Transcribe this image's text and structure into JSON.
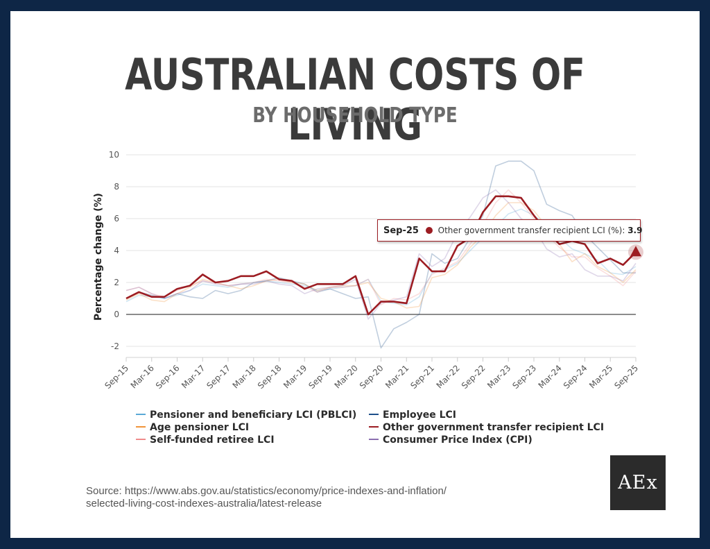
{
  "header": {
    "title": "AUSTRALIAN COSTS OF LIVING",
    "subtitle": "BY HOUSEHOLD TYPE"
  },
  "chart_data": {
    "type": "line",
    "title": "AUSTRALIAN COSTS OF LIVING",
    "subtitle": "BY HOUSEHOLD TYPE",
    "xlabel": "",
    "ylabel": "Percentage change (%)",
    "ylim": [
      -2,
      10
    ],
    "yticks": [
      "10",
      "8",
      "6",
      "4",
      "2",
      "0",
      "-2"
    ],
    "x_tick_labels": [
      "Sep-15",
      "Mar-16",
      "Sep-16",
      "Mar-17",
      "Sep-17",
      "Mar-18",
      "Sep-18",
      "Mar-19",
      "Sep-19",
      "Mar-20",
      "Sep-20",
      "Mar-21",
      "Sep-21",
      "Mar-22",
      "Sep-22",
      "Mar-23",
      "Sep-23",
      "Mar-24",
      "Sep-24",
      "Mar-25",
      "Sep-25"
    ],
    "categories": [
      "Sep-15",
      "Dec-15",
      "Mar-16",
      "Jun-16",
      "Sep-16",
      "Dec-16",
      "Mar-17",
      "Jun-17",
      "Sep-17",
      "Dec-17",
      "Mar-18",
      "Jun-18",
      "Sep-18",
      "Dec-18",
      "Mar-19",
      "Jun-19",
      "Sep-19",
      "Dec-19",
      "Mar-20",
      "Jun-20",
      "Sep-20",
      "Dec-20",
      "Mar-21",
      "Jun-21",
      "Sep-21",
      "Dec-21",
      "Mar-22",
      "Jun-22",
      "Sep-22",
      "Dec-22",
      "Mar-23",
      "Jun-23",
      "Sep-23",
      "Dec-23",
      "Mar-24",
      "Jun-24",
      "Sep-24",
      "Dec-24",
      "Mar-25",
      "Jun-25",
      "Sep-25"
    ],
    "series": [
      {
        "name": "Pensioner and beneficiary LCI (PBLCI)",
        "color": "#5aa9d6",
        "values": [
          0.8,
          1.2,
          1.1,
          1.0,
          1.2,
          1.5,
          1.9,
          1.8,
          1.7,
          1.9,
          2.0,
          2.1,
          2.0,
          1.9,
          1.8,
          1.5,
          1.6,
          1.7,
          1.8,
          2.2,
          0.8,
          0.7,
          0.6,
          1.1,
          2.6,
          2.8,
          3.2,
          4.0,
          4.8,
          5.5,
          6.3,
          6.6,
          6.2,
          5.6,
          4.8,
          4.1,
          3.8,
          3.4,
          2.6,
          2.5,
          3.0
        ]
      },
      {
        "name": "Employee LCI",
        "color": "#1e4f8a",
        "values": [
          1.0,
          1.4,
          1.2,
          1.0,
          1.3,
          1.1,
          1.0,
          1.5,
          1.3,
          1.5,
          2.0,
          2.1,
          2.3,
          2.1,
          1.9,
          1.4,
          1.6,
          1.3,
          1.0,
          1.1,
          -2.1,
          -0.9,
          -0.5,
          0.0,
          3.8,
          3.2,
          3.5,
          4.8,
          6.2,
          9.3,
          9.6,
          9.6,
          9.0,
          6.9,
          6.5,
          6.2,
          5.0,
          4.2,
          3.4,
          2.6,
          2.6
        ]
      },
      {
        "name": "Age pensioner LCI",
        "color": "#f0943a",
        "values": [
          0.9,
          1.3,
          0.9,
          0.8,
          1.3,
          1.7,
          2.2,
          2.0,
          1.8,
          1.6,
          1.8,
          2.1,
          2.2,
          2.0,
          1.9,
          1.5,
          1.7,
          1.8,
          1.8,
          2.0,
          1.0,
          0.8,
          0.4,
          0.5,
          2.3,
          2.5,
          3.1,
          4.2,
          5.0,
          6.2,
          7.0,
          7.0,
          6.5,
          5.5,
          4.4,
          3.3,
          3.8,
          3.0,
          2.6,
          2.0,
          2.8
        ]
      },
      {
        "name": "Other government transfer recipient LCI",
        "color": "#9c1c22",
        "values": [
          1.0,
          1.4,
          1.1,
          1.1,
          1.6,
          1.8,
          2.5,
          2.0,
          2.1,
          2.4,
          2.4,
          2.7,
          2.2,
          2.1,
          1.6,
          1.9,
          1.9,
          1.9,
          2.4,
          0.0,
          0.8,
          0.8,
          0.7,
          3.5,
          2.7,
          2.7,
          4.3,
          4.8,
          6.4,
          7.4,
          7.4,
          7.3,
          6.2,
          5.2,
          4.4,
          4.6,
          4.4,
          3.2,
          3.5,
          3.1,
          3.9
        ]
      },
      {
        "name": "Self-funded retiree LCI",
        "color": "#ef8b8b",
        "values": [
          1.5,
          1.7,
          1.3,
          1.1,
          1.5,
          1.8,
          2.1,
          2.0,
          1.8,
          1.9,
          2.0,
          2.2,
          2.1,
          2.0,
          1.7,
          1.4,
          1.7,
          1.7,
          1.8,
          2.2,
          0.6,
          1.0,
          0.9,
          1.3,
          2.5,
          2.9,
          3.3,
          4.4,
          5.6,
          7.0,
          7.8,
          7.0,
          6.0,
          5.0,
          4.2,
          3.6,
          3.6,
          2.9,
          2.4,
          1.8,
          2.7
        ]
      },
      {
        "name": "Consumer Price Index (CPI)",
        "color": "#8b6fb0",
        "values": [
          1.5,
          1.7,
          1.3,
          1.0,
          1.3,
          1.5,
          2.1,
          1.9,
          1.8,
          1.9,
          1.9,
          2.1,
          1.9,
          1.8,
          1.3,
          1.6,
          1.7,
          1.8,
          2.2,
          -0.3,
          0.7,
          0.9,
          1.1,
          3.8,
          3.0,
          3.5,
          5.1,
          6.1,
          7.3,
          7.8,
          7.0,
          6.0,
          5.4,
          4.1,
          3.6,
          3.8,
          2.8,
          2.4,
          2.4,
          2.1,
          3.2
        ]
      }
    ],
    "legend": "bottom",
    "grid": true,
    "tooltip": {
      "date": "Sep-25",
      "label": "Other government transfer recipient LCI (%):",
      "value": "3.9"
    }
  },
  "footer": {
    "source_line1": "Source: https://www.abs.gov.au/statistics/economy/price-indexes-and-inflation/",
    "source_line2": "selected-living-cost-indexes-australia/latest-release",
    "logo_text": "AEx"
  },
  "colors": {
    "background": "#0e2646",
    "card": "#ffffff",
    "title": "#3b3b3b",
    "subtitle": "#6c6c6c"
  }
}
